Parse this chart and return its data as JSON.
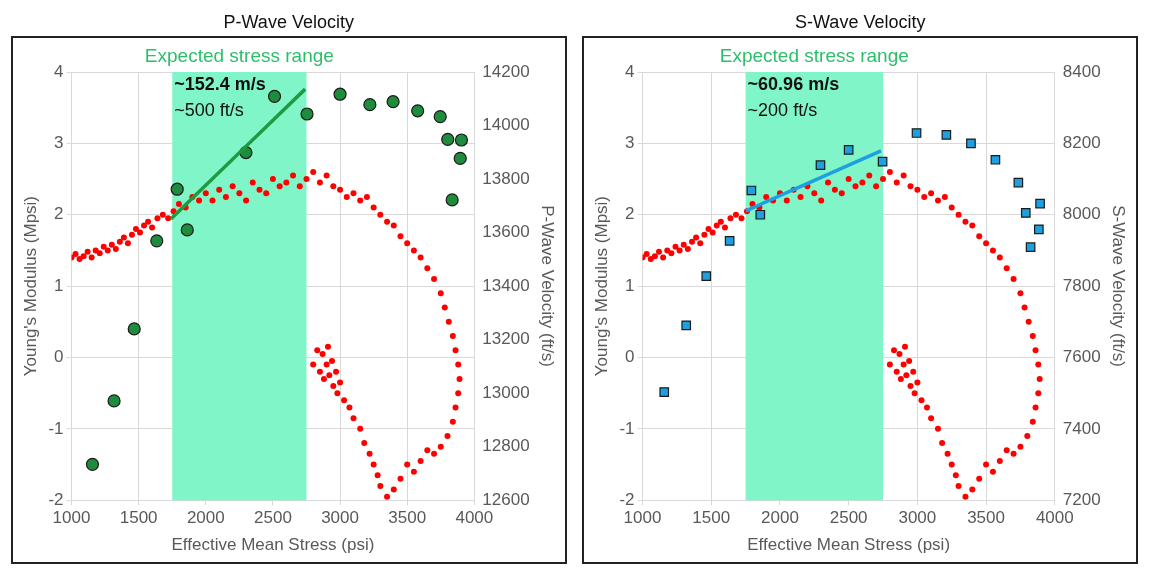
{
  "chart_data": [
    {
      "type": "scatter",
      "title": "P-Wave Velocity",
      "xlabel": "Effective Mean Stress (psi)",
      "ylabel": "Young's Modulus (Mpsi)",
      "y2label": "P-Wave Velocity (ft/s)",
      "xlim": [
        1000,
        4000
      ],
      "xticks": [
        1000,
        1500,
        2000,
        2500,
        3000,
        3500,
        4000
      ],
      "ylim": [
        -2,
        4
      ],
      "yticks": [
        -2,
        -1,
        0,
        1,
        2,
        3,
        4
      ],
      "y2lim": [
        12600,
        14200
      ],
      "y2ticks": [
        12600,
        12800,
        13000,
        13200,
        13400,
        13600,
        13800,
        14000,
        14200
      ],
      "grid": true,
      "legend": false,
      "bands": [
        {
          "axis": "x",
          "from": 1750,
          "to": 2750,
          "label": "Expected stress range",
          "color": "#80f5c8"
        }
      ],
      "annotations": [
        "~152.4 m/s",
        "~500 ft/s"
      ],
      "series": [
        {
          "type": "scatter",
          "color": "#ff0000",
          "marker": "circle",
          "x": [
            1000,
            1030,
            1060,
            1090,
            1120,
            1150,
            1180,
            1210,
            1240,
            1270,
            1300,
            1330,
            1360,
            1390,
            1420,
            1450,
            1480,
            1510,
            1540,
            1570,
            1600,
            1640,
            1680,
            1720,
            1760,
            1800,
            1850,
            1900,
            1950,
            2000,
            2050,
            2100,
            2150,
            2200,
            2250,
            2300,
            2350,
            2400,
            2450,
            2500,
            2550,
            2600,
            2650,
            2700,
            2750,
            2800,
            2850,
            2900,
            2950,
            3000,
            3050,
            3100,
            3150,
            3200,
            3250,
            3300,
            3350,
            3400,
            3450,
            3500,
            3550,
            3600,
            3650,
            3700,
            3750,
            3780,
            3810,
            3840,
            3860,
            3880,
            3890,
            3880,
            3860,
            3840,
            3800,
            3750,
            3700,
            3650,
            3600,
            3550,
            3500,
            3450,
            3400,
            3350,
            2800,
            2830,
            2850,
            2870,
            2880,
            2900,
            2910,
            2920,
            2940,
            2950,
            2970,
            2980,
            3000,
            3030,
            3070,
            3100,
            3150,
            3180,
            3220,
            3250,
            3280,
            3300
          ],
          "values": [
            1.4,
            1.45,
            1.38,
            1.42,
            1.48,
            1.4,
            1.5,
            1.46,
            1.55,
            1.5,
            1.58,
            1.52,
            1.62,
            1.68,
            1.6,
            1.72,
            1.8,
            1.75,
            1.85,
            1.9,
            1.82,
            1.95,
            2.0,
            1.95,
            2.05,
            2.15,
            2.1,
            2.25,
            2.2,
            2.3,
            2.2,
            2.35,
            2.25,
            2.4,
            2.3,
            2.2,
            2.45,
            2.35,
            2.3,
            2.5,
            2.4,
            2.45,
            2.55,
            2.4,
            2.5,
            2.6,
            2.45,
            2.55,
            2.4,
            2.35,
            2.25,
            2.3,
            2.2,
            2.25,
            2.1,
            2.0,
            1.9,
            1.85,
            1.7,
            1.6,
            1.5,
            1.4,
            1.25,
            1.1,
            0.9,
            0.7,
            0.5,
            0.3,
            0.1,
            -0.1,
            -0.3,
            -0.5,
            -0.7,
            -0.9,
            -1.1,
            -1.25,
            -1.35,
            -1.3,
            -1.45,
            -1.6,
            -1.5,
            -1.7,
            -1.85,
            -1.95,
            -0.1,
            0.1,
            -0.2,
            0.05,
            -0.3,
            -0.1,
            0.15,
            -0.25,
            -0.05,
            -0.4,
            -0.2,
            -0.5,
            -0.35,
            -0.6,
            -0.7,
            -0.85,
            -1.0,
            -1.2,
            -1.35,
            -1.5,
            -1.65,
            -1.8
          ]
        },
        {
          "type": "scatter",
          "axis": "y2",
          "color": "#1e8c3c",
          "marker": "circle",
          "x": [
            1156,
            1317,
            1467,
            1635,
            1787,
            1862,
            2299,
            2512,
            2754,
            3000,
            3222,
            3395,
            3578,
            3746,
            3802,
            3904,
            3895,
            3835
          ],
          "values": [
            12734,
            12971,
            13240,
            13569,
            13762,
            13610,
            13899,
            14109,
            14043,
            14117,
            14078,
            14089,
            14055,
            14033,
            13948,
            13946,
            13877,
            13722
          ]
        },
        {
          "type": "line",
          "axis": "y2",
          "color": "#1e9a40",
          "marker": "none",
          "x": [
            1740,
            2740
          ],
          "values": [
            13651,
            14136
          ]
        }
      ]
    },
    {
      "type": "scatter",
      "title": "S-Wave Velocity",
      "xlabel": "Effective Mean Stress (psi)",
      "ylabel": "Young's Modulus (Mpsi)",
      "y2label": "S-Wave Velocity (ft/s)",
      "xlim": [
        1000,
        4000
      ],
      "xticks": [
        1000,
        1500,
        2000,
        2500,
        3000,
        3500,
        4000
      ],
      "ylim": [
        -2,
        4
      ],
      "yticks": [
        -2,
        -1,
        0,
        1,
        2,
        3,
        4
      ],
      "y2lim": [
        7200,
        8400
      ],
      "y2ticks": [
        7200,
        7400,
        7600,
        7800,
        8000,
        8200,
        8400
      ],
      "grid": true,
      "legend": false,
      "bands": [
        {
          "axis": "x",
          "from": 1750,
          "to": 2750,
          "label": "Expected stress range",
          "color": "#80f5c8"
        }
      ],
      "annotations": [
        "~60.96 m/s",
        "~200 ft/s"
      ],
      "series": [
        {
          "type": "scatter",
          "color": "#ff0000",
          "marker": "circle",
          "x": [
            1000,
            1030,
            1060,
            1090,
            1120,
            1150,
            1180,
            1210,
            1240,
            1270,
            1300,
            1330,
            1360,
            1390,
            1420,
            1450,
            1480,
            1510,
            1540,
            1570,
            1600,
            1640,
            1680,
            1720,
            1760,
            1800,
            1850,
            1900,
            1950,
            2000,
            2050,
            2100,
            2150,
            2200,
            2250,
            2300,
            2350,
            2400,
            2450,
            2500,
            2550,
            2600,
            2650,
            2700,
            2750,
            2800,
            2850,
            2900,
            2950,
            3000,
            3050,
            3100,
            3150,
            3200,
            3250,
            3300,
            3350,
            3400,
            3450,
            3500,
            3550,
            3600,
            3650,
            3700,
            3750,
            3780,
            3810,
            3840,
            3860,
            3880,
            3890,
            3880,
            3860,
            3840,
            3800,
            3750,
            3700,
            3650,
            3600,
            3550,
            3500,
            3450,
            3400,
            3350,
            2800,
            2830,
            2850,
            2870,
            2880,
            2900,
            2910,
            2920,
            2940,
            2950,
            2970,
            2980,
            3000,
            3030,
            3070,
            3100,
            3150,
            3180,
            3220,
            3250,
            3280,
            3300
          ],
          "values": [
            1.4,
            1.45,
            1.38,
            1.42,
            1.48,
            1.4,
            1.5,
            1.46,
            1.55,
            1.5,
            1.58,
            1.52,
            1.62,
            1.68,
            1.6,
            1.72,
            1.8,
            1.75,
            1.85,
            1.9,
            1.82,
            1.95,
            2.0,
            1.95,
            2.05,
            2.15,
            2.1,
            2.25,
            2.2,
            2.3,
            2.2,
            2.35,
            2.25,
            2.4,
            2.3,
            2.2,
            2.45,
            2.35,
            2.3,
            2.5,
            2.4,
            2.45,
            2.55,
            2.4,
            2.5,
            2.6,
            2.45,
            2.55,
            2.4,
            2.35,
            2.25,
            2.3,
            2.2,
            2.25,
            2.1,
            2.0,
            1.9,
            1.85,
            1.7,
            1.6,
            1.5,
            1.4,
            1.25,
            1.1,
            0.9,
            0.7,
            0.5,
            0.3,
            0.1,
            -0.1,
            -0.3,
            -0.5,
            -0.7,
            -0.9,
            -1.1,
            -1.25,
            -1.35,
            -1.3,
            -1.45,
            -1.6,
            -1.5,
            -1.7,
            -1.85,
            -1.95,
            -0.1,
            0.1,
            -0.2,
            0.05,
            -0.3,
            -0.1,
            0.15,
            -0.25,
            -0.05,
            -0.4,
            -0.2,
            -0.5,
            -0.35,
            -0.6,
            -0.7,
            -0.85,
            -1.0,
            -1.2,
            -1.35,
            -1.5,
            -1.65,
            -1.8
          ]
        },
        {
          "type": "scatter",
          "axis": "y2",
          "color": "#1ca0e0",
          "marker": "square",
          "x": [
            1158,
            1318,
            1464,
            1634,
            1792,
            1857,
            2295,
            2500,
            2747,
            2994,
            3211,
            3390,
            3568,
            3735,
            3789,
            3893,
            3884,
            3824
          ],
          "values": [
            7503,
            7690,
            7828,
            7927,
            8068,
            8000,
            8139,
            8182,
            8149,
            8229,
            8224,
            8200,
            8154,
            8090,
            8005,
            8031,
            7959,
            7909
          ]
        },
        {
          "type": "line",
          "axis": "y2",
          "color": "#1ca0e0",
          "marker": "none",
          "x": [
            1753,
            2735
          ],
          "values": [
            8011,
            8179
          ]
        }
      ]
    }
  ]
}
